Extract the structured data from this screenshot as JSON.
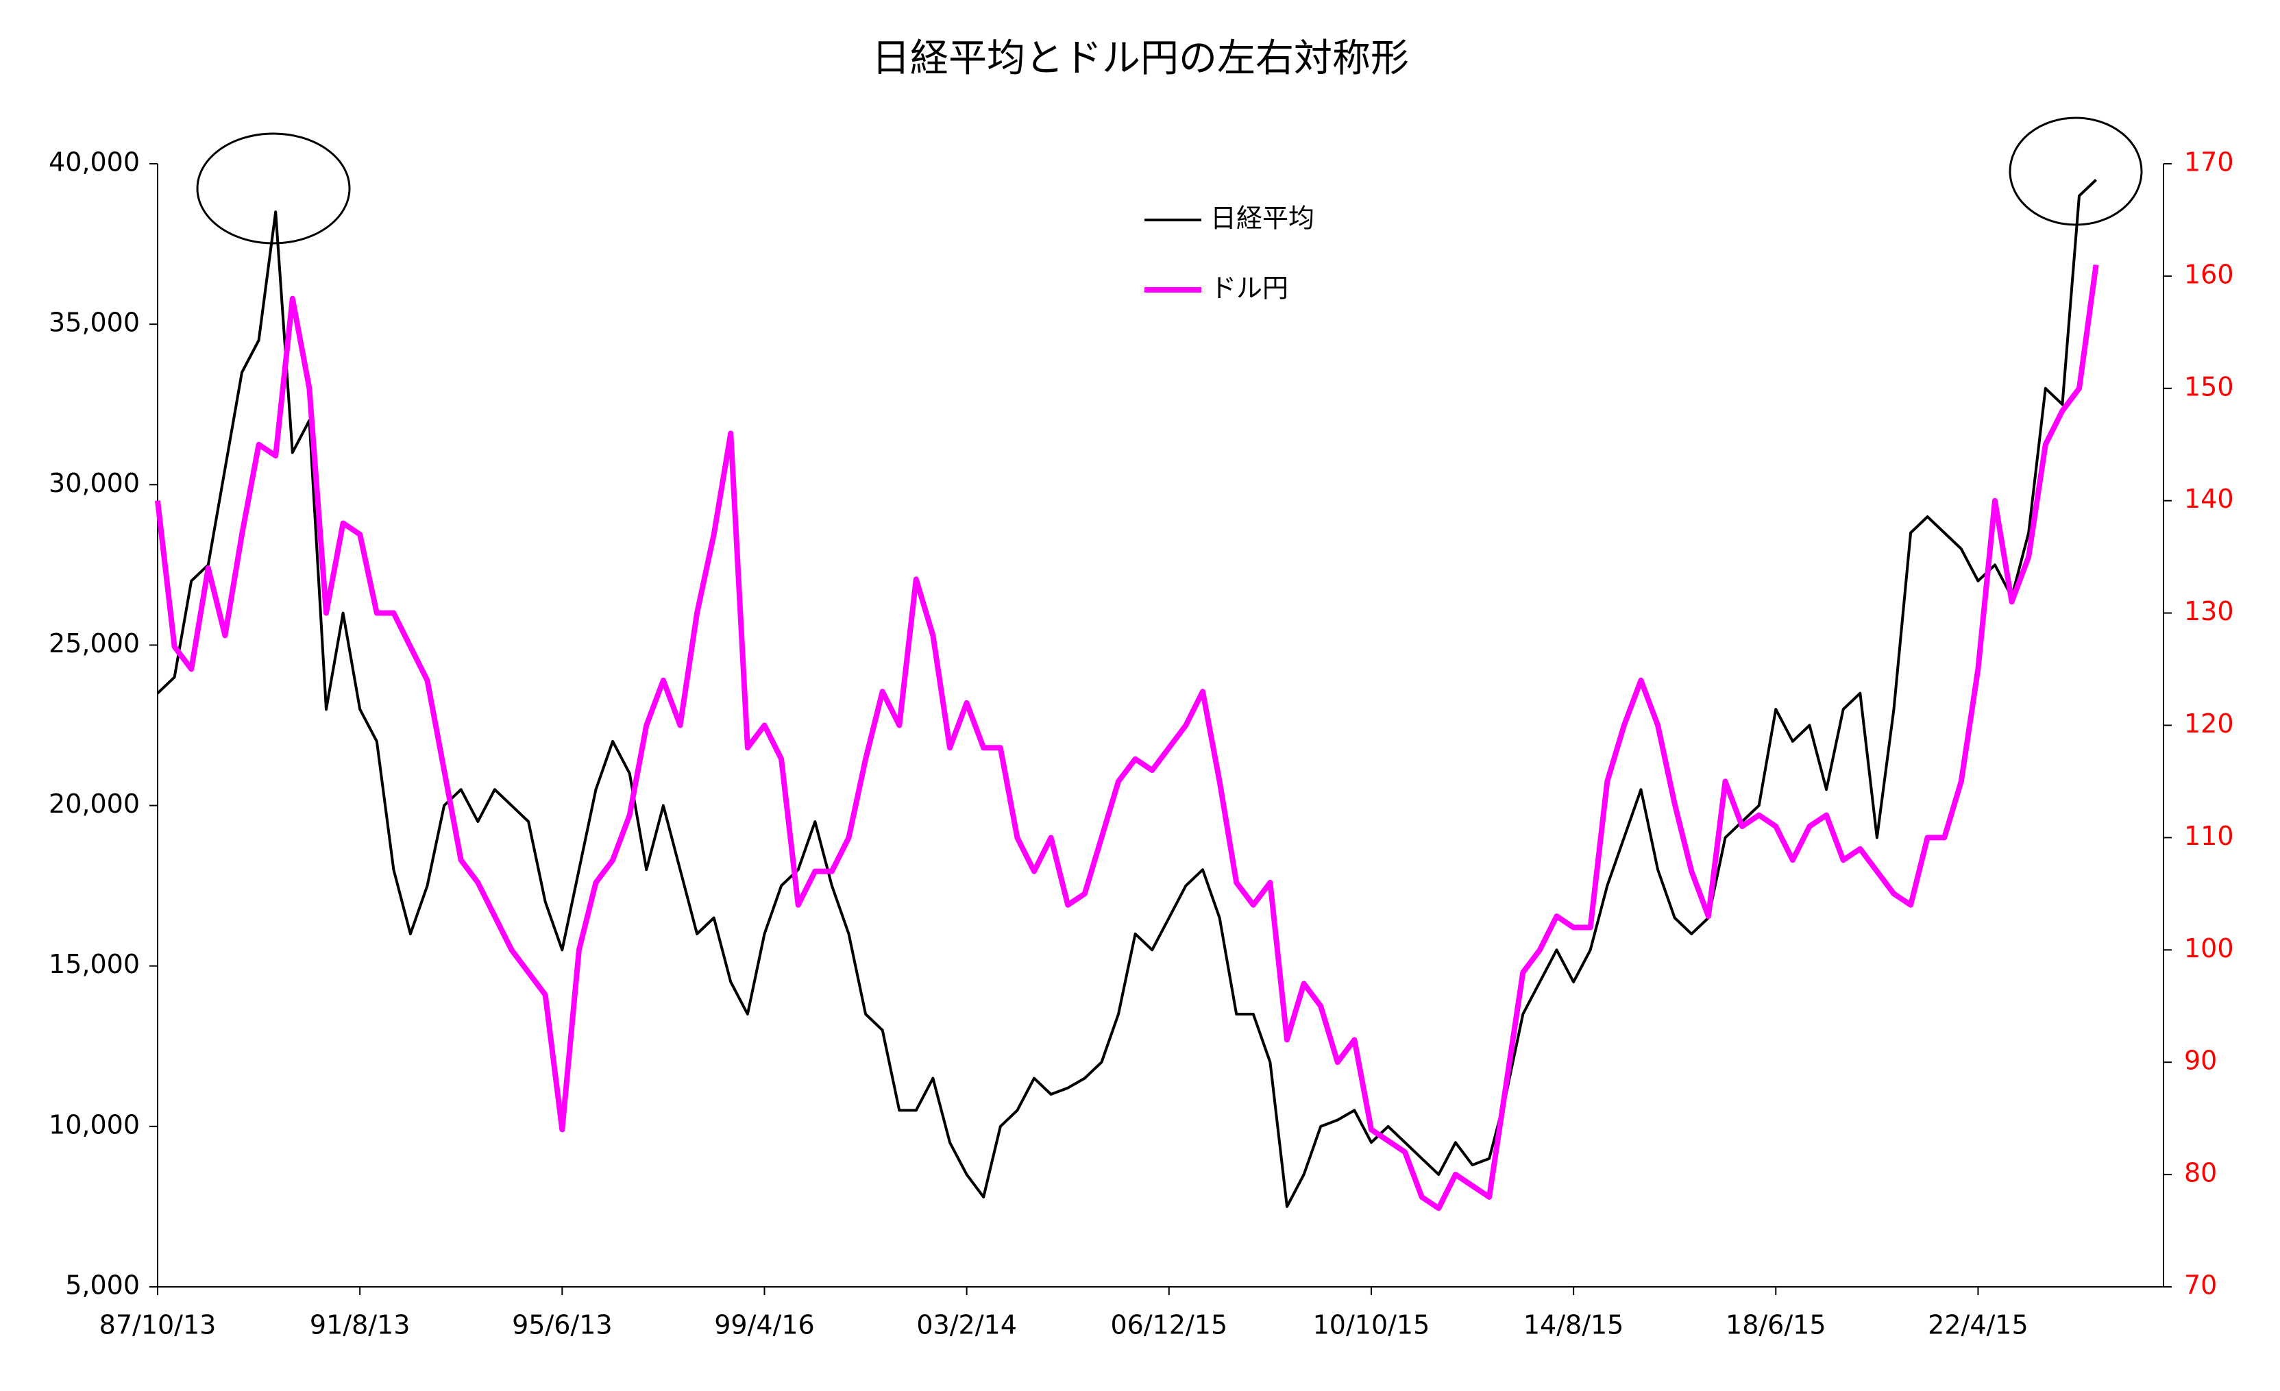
{
  "chart_data": {
    "type": "line",
    "title": "日経平均とドル円の左右対称形",
    "categories": [
      "87/10/13",
      null,
      null,
      null,
      null,
      null,
      null,
      null,
      null,
      null,
      null,
      null,
      "91/8/13",
      null,
      null,
      null,
      null,
      null,
      null,
      null,
      null,
      null,
      null,
      null,
      "95/6/13",
      null,
      null,
      null,
      null,
      null,
      null,
      null,
      null,
      null,
      null,
      null,
      "99/4/16",
      null,
      null,
      null,
      null,
      null,
      null,
      null,
      null,
      null,
      null,
      null,
      "03/2/14",
      null,
      null,
      null,
      null,
      null,
      null,
      null,
      null,
      null,
      null,
      null,
      "06/12/15",
      null,
      null,
      null,
      null,
      null,
      null,
      null,
      null,
      null,
      null,
      null,
      "10/10/15",
      null,
      null,
      null,
      null,
      null,
      null,
      null,
      null,
      null,
      null,
      null,
      "14/8/15",
      null,
      null,
      null,
      null,
      null,
      null,
      null,
      null,
      null,
      null,
      null,
      "18/6/15",
      null,
      null,
      null,
      null,
      null,
      null,
      null,
      null,
      null,
      null,
      null,
      "22/4/15",
      null,
      null,
      null,
      null,
      null,
      null,
      null,
      null,
      null,
      null,
      null
    ],
    "series": [
      {
        "name": "日経平均",
        "color": "#000000",
        "values": [
          23500,
          24000,
          27000,
          27500,
          30500,
          33500,
          34500,
          38500,
          31000,
          32000,
          23000,
          26000,
          23000,
          22000,
          18000,
          16000,
          17500,
          20000,
          20500,
          19500,
          20500,
          20000,
          19500,
          17000,
          15500,
          18000,
          20500,
          22000,
          21000,
          18000,
          20000,
          18000,
          16000,
          16500,
          14500,
          13500,
          16000,
          17500,
          18000,
          19500,
          17500,
          16000,
          13500,
          13000,
          10500,
          10500,
          11500,
          9500,
          8500,
          7800,
          10000,
          10500,
          11500,
          11000,
          11200,
          11500,
          12000,
          13500,
          16000,
          15500,
          16500,
          17500,
          18000,
          16500,
          13500,
          13500,
          12000,
          7500,
          8500,
          10000,
          10200,
          10500,
          9500,
          10000,
          9500,
          9000,
          8500,
          9500,
          8800,
          9000,
          11000,
          13500,
          14500,
          15500,
          14500,
          15500,
          17500,
          19000,
          20500,
          18000,
          16500,
          16000,
          16500,
          19000,
          19500,
          20000,
          23000,
          22000,
          22500,
          20500,
          23000,
          23500,
          19000,
          23000,
          28500,
          29000,
          28500,
          28000,
          27000,
          27500,
          26500,
          28500,
          33000,
          32500,
          39000,
          39500,
          null,
          null,
          null,
          null
        ]
      },
      {
        "name": "ドル円",
        "color": "#ff00ff",
        "axis": "y2",
        "values": [
          140,
          127,
          125,
          134,
          128,
          137,
          145,
          144,
          158,
          150,
          130,
          138,
          137,
          130,
          130,
          127,
          124,
          116,
          108,
          106,
          103,
          100,
          98,
          96,
          84,
          100,
          106,
          108,
          112,
          120,
          124,
          120,
          130,
          137,
          146,
          118,
          120,
          117,
          104,
          107,
          107,
          110,
          117,
          123,
          120,
          133,
          128,
          118,
          122,
          118,
          118,
          110,
          107,
          110,
          104,
          105,
          110,
          115,
          117,
          116,
          118,
          120,
          123,
          115,
          106,
          104,
          106,
          92,
          97,
          95,
          90,
          92,
          84,
          83,
          82,
          78,
          77,
          80,
          79,
          78,
          88,
          98,
          100,
          103,
          102,
          102,
          115,
          120,
          124,
          120,
          113,
          107,
          103,
          115,
          111,
          112,
          111,
          108,
          111,
          112,
          108,
          109,
          107,
          105,
          104,
          110,
          110,
          115,
          125,
          140,
          131,
          135,
          145,
          148,
          150,
          161,
          null,
          null,
          null,
          null
        ]
      }
    ],
    "ylim": [
      5000,
      40000
    ],
    "yticks": [
      {
        "value": 5000,
        "label": "5,000"
      },
      {
        "value": 10000,
        "label": "10,000"
      },
      {
        "value": 15000,
        "label": "15,000"
      },
      {
        "value": 20000,
        "label": "20,000"
      },
      {
        "value": 25000,
        "label": "25,000"
      },
      {
        "value": 30000,
        "label": "30,000"
      },
      {
        "value": 35000,
        "label": "35,000"
      },
      {
        "value": 40000,
        "label": "40,000"
      }
    ],
    "y2lim": [
      70,
      170
    ],
    "y2ticks": [
      70,
      80,
      90,
      100,
      110,
      120,
      130,
      140,
      150,
      160,
      170
    ],
    "y2_tick_color": "#ff0000",
    "grid": false
  }
}
